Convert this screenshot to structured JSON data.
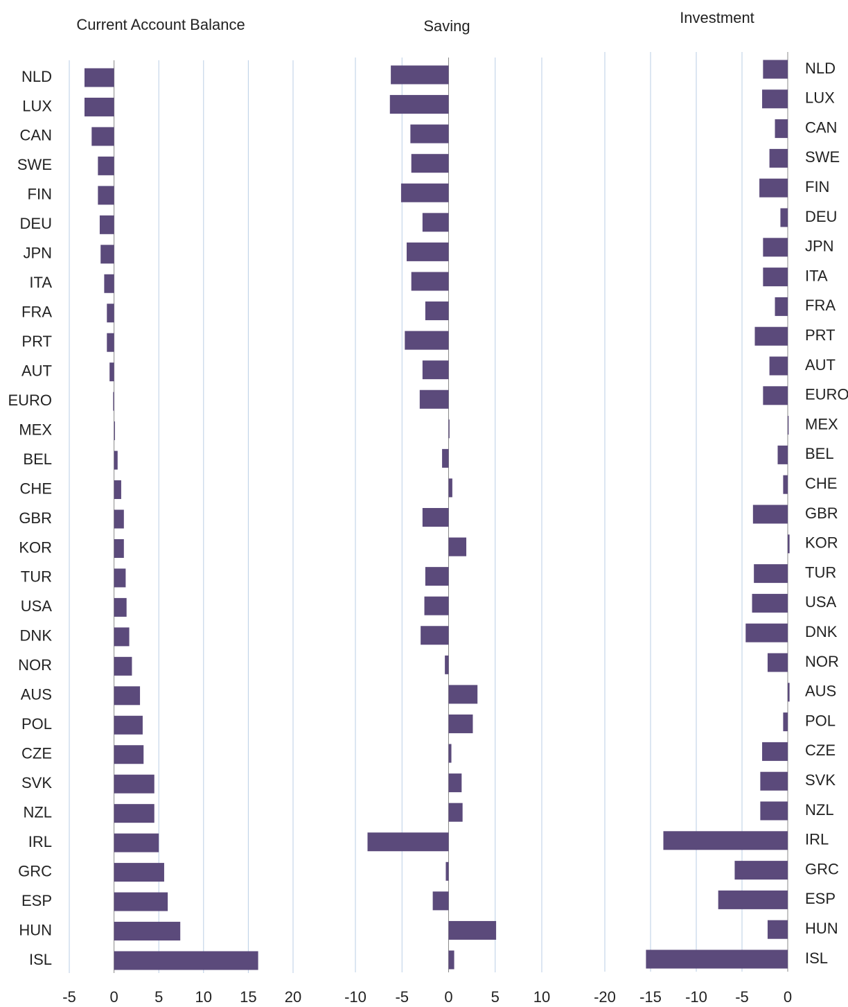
{
  "chart_data": [
    {
      "type": "bar",
      "orientation": "horizontal",
      "title": "Current Account Balance",
      "categories": [
        "NLD",
        "LUX",
        "CAN",
        "SWE",
        "FIN",
        "DEU",
        "JPN",
        "ITA",
        "FRA",
        "PRT",
        "AUT",
        "EURO",
        "MEX",
        "BEL",
        "CHE",
        "GBR",
        "KOR",
        "TUR",
        "USA",
        "DNK",
        "NOR",
        "AUS",
        "POL",
        "CZE",
        "SVK",
        "NZL",
        "IRL",
        "GRC",
        "ESP",
        "HUN",
        "ISL"
      ],
      "values": [
        -3.3,
        -3.3,
        -2.5,
        -1.8,
        -1.8,
        -1.6,
        -1.5,
        -1.1,
        -0.8,
        -0.8,
        -0.5,
        -0.1,
        0.1,
        0.4,
        0.8,
        1.1,
        1.1,
        1.3,
        1.4,
        1.7,
        2.0,
        2.9,
        3.2,
        3.3,
        4.5,
        4.5,
        5.0,
        5.6,
        6.0,
        7.4,
        16.1
      ],
      "color": "#5b4a7b",
      "xlim": [
        -5,
        20
      ],
      "xticks": [
        -5,
        0,
        5,
        10,
        15,
        20
      ],
      "grid": true
    },
    {
      "type": "bar",
      "orientation": "horizontal",
      "title": "Saving",
      "values": [
        -6.2,
        -6.3,
        -4.1,
        -4.0,
        -5.1,
        -2.8,
        -4.5,
        -4.0,
        -2.5,
        -4.7,
        -2.8,
        -3.1,
        0.1,
        -0.7,
        0.4,
        -2.8,
        1.9,
        -2.5,
        -2.6,
        -3.0,
        -0.4,
        3.1,
        2.6,
        0.3,
        1.4,
        1.5,
        -8.7,
        -0.3,
        -1.7,
        5.1,
        0.6
      ],
      "color": "#5b4a7b",
      "xlim": [
        -10,
        10
      ],
      "xticks": [
        -10,
        -5,
        0,
        5,
        10
      ],
      "grid": true
    },
    {
      "type": "bar",
      "orientation": "horizontal",
      "title": "Investment",
      "categories": [
        "NLD",
        "LUX",
        "CAN",
        "SWE",
        "FIN",
        "DEU",
        "JPN",
        "ITA",
        "FRA",
        "PRT",
        "AUT",
        "EURO",
        "MEX",
        "BEL",
        "CHE",
        "GBR",
        "KOR",
        "TUR",
        "USA",
        "DNK",
        "NOR",
        "AUS",
        "POL",
        "CZE",
        "SVK",
        "NZL",
        "IRL",
        "GRC",
        "ESP",
        "HUN",
        "ISL"
      ],
      "values": [
        -2.7,
        -2.8,
        -1.4,
        -2.0,
        -3.1,
        -0.8,
        -2.7,
        -2.7,
        -1.4,
        -3.6,
        -2.0,
        -2.7,
        0.1,
        -1.1,
        -0.5,
        -3.8,
        0.2,
        -3.7,
        -3.9,
        -4.6,
        -2.2,
        0.2,
        -0.5,
        -2.8,
        -3.0,
        -3.0,
        -13.6,
        -5.8,
        -7.6,
        -2.2,
        -15.5
      ],
      "color": "#5b4a7b",
      "xlim": [
        -20,
        0
      ],
      "xticks": [
        -20,
        -15,
        -10,
        -5,
        0
      ],
      "grid": true
    }
  ]
}
